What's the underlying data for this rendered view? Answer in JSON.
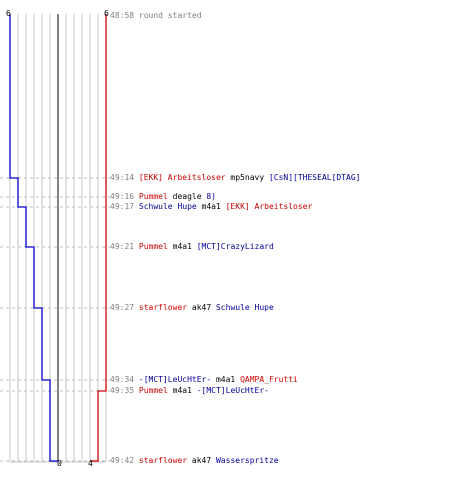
{
  "colors": {
    "team_blue": "#0000cc",
    "team_red": "#cc0000",
    "grid": "#c8c8c8",
    "divider": "#808080",
    "dashed": "#bbbbbb",
    "time": "#808080",
    "text": "#000000"
  },
  "scores": {
    "blue_start": "6",
    "red_start": "6",
    "blue_end": "0",
    "red_end": "4"
  },
  "events": [
    {
      "time": "48:58",
      "parts": [
        {
          "text": "round started",
          "color": "time"
        }
      ]
    },
    {
      "time": "49:14",
      "parts": [
        {
          "text": "[EKK] Arbeitsloser",
          "color": "red"
        },
        {
          "text": "mp5navy",
          "color": "dark"
        },
        {
          "text": "[CsN][THESEAL[DTAG]",
          "color": "blue"
        }
      ]
    },
    {
      "time": "49:16",
      "parts": [
        {
          "text": "Pummel",
          "color": "red"
        },
        {
          "text": "deagle",
          "color": "dark"
        },
        {
          "text": "8)",
          "color": "blue"
        }
      ]
    },
    {
      "time": "49:17",
      "parts": [
        {
          "text": "Schwule Hupe",
          "color": "blue"
        },
        {
          "text": "m4a1",
          "color": "dark"
        },
        {
          "text": "[EKK] Arbeitsloser",
          "color": "red"
        }
      ]
    },
    {
      "time": "49:21",
      "parts": [
        {
          "text": "Pummel",
          "color": "red"
        },
        {
          "text": "m4a1",
          "color": "dark"
        },
        {
          "text": "[MCT]CrazyLizard",
          "color": "blue"
        }
      ]
    },
    {
      "time": "49:27",
      "parts": [
        {
          "text": "starflower",
          "color": "red"
        },
        {
          "text": "ak47",
          "color": "dark"
        },
        {
          "text": "Schwule Hupe",
          "color": "blue"
        }
      ]
    },
    {
      "time": "49:34",
      "parts": [
        {
          "text": "-[MCT]LeUcHtEr-",
          "color": "blue"
        },
        {
          "text": "m4a1",
          "color": "dark"
        },
        {
          "text": "QAMPA_Frutti",
          "color": "red"
        }
      ]
    },
    {
      "time": "49:35",
      "parts": [
        {
          "text": "Pummel",
          "color": "red"
        },
        {
          "text": "m4a1",
          "color": "dark"
        },
        {
          "text": "-[MCT]LeUcHtEr-",
          "color": "blue"
        }
      ]
    },
    {
      "time": "49:42",
      "parts": [
        {
          "text": "starflower",
          "color": "red"
        },
        {
          "text": "ak47",
          "color": "dark"
        },
        {
          "text": "Wasserspritze",
          "color": "blue"
        }
      ]
    }
  ]
}
